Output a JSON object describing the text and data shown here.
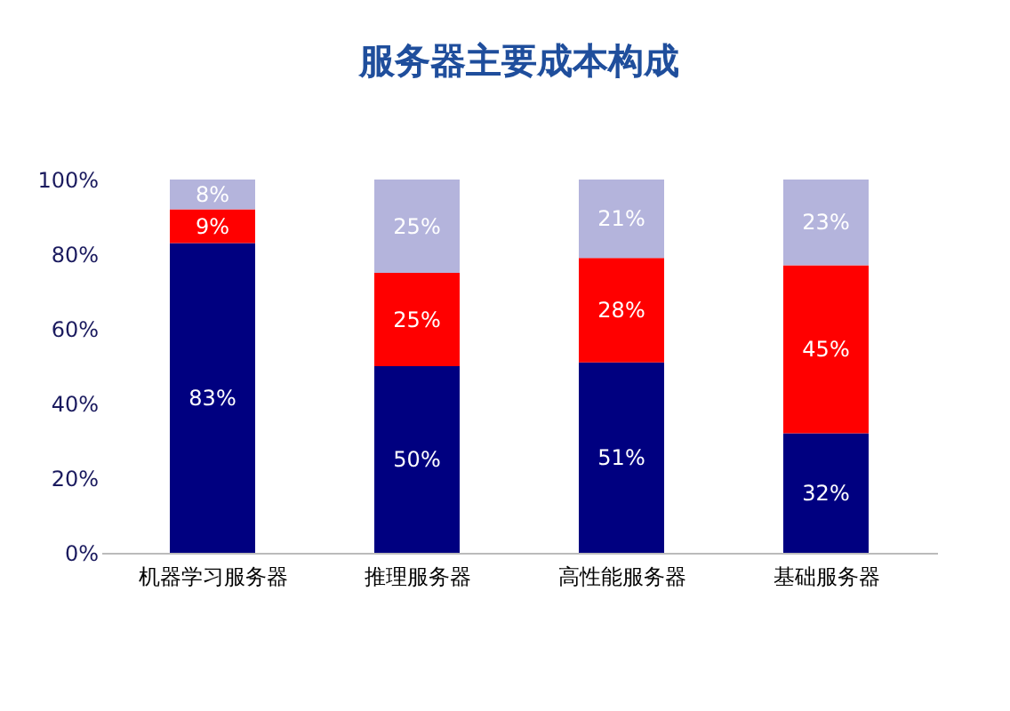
{
  "chart_data": {
    "type": "bar",
    "title": "服务器主要成本构成",
    "stacked": true,
    "categories": [
      "机器学习服务器",
      "推理服务器",
      "高性能服务器",
      "基础服务器"
    ],
    "series": [
      {
        "color": "#000080",
        "values": [
          83,
          50,
          51,
          32
        ],
        "value_labels": [
          "83%",
          "50%",
          "51%",
          "32%"
        ]
      },
      {
        "color": "#ff0000",
        "values": [
          9,
          25,
          28,
          45
        ],
        "value_labels": [
          "9%",
          "25%",
          "28%",
          "45%"
        ]
      },
      {
        "color": "#b4b4dc",
        "values": [
          8,
          25,
          21,
          23
        ],
        "value_labels": [
          "8%",
          "25%",
          "21%",
          "23%"
        ]
      }
    ],
    "ylim": [
      0,
      100
    ],
    "yticks": [
      {
        "value": 0,
        "label": "0%"
      },
      {
        "value": 20,
        "label": "20%"
      },
      {
        "value": 40,
        "label": "40%"
      },
      {
        "value": 60,
        "label": "60%"
      },
      {
        "value": 80,
        "label": "80%"
      },
      {
        "value": 100,
        "label": "100%"
      }
    ],
    "grid": false
  }
}
